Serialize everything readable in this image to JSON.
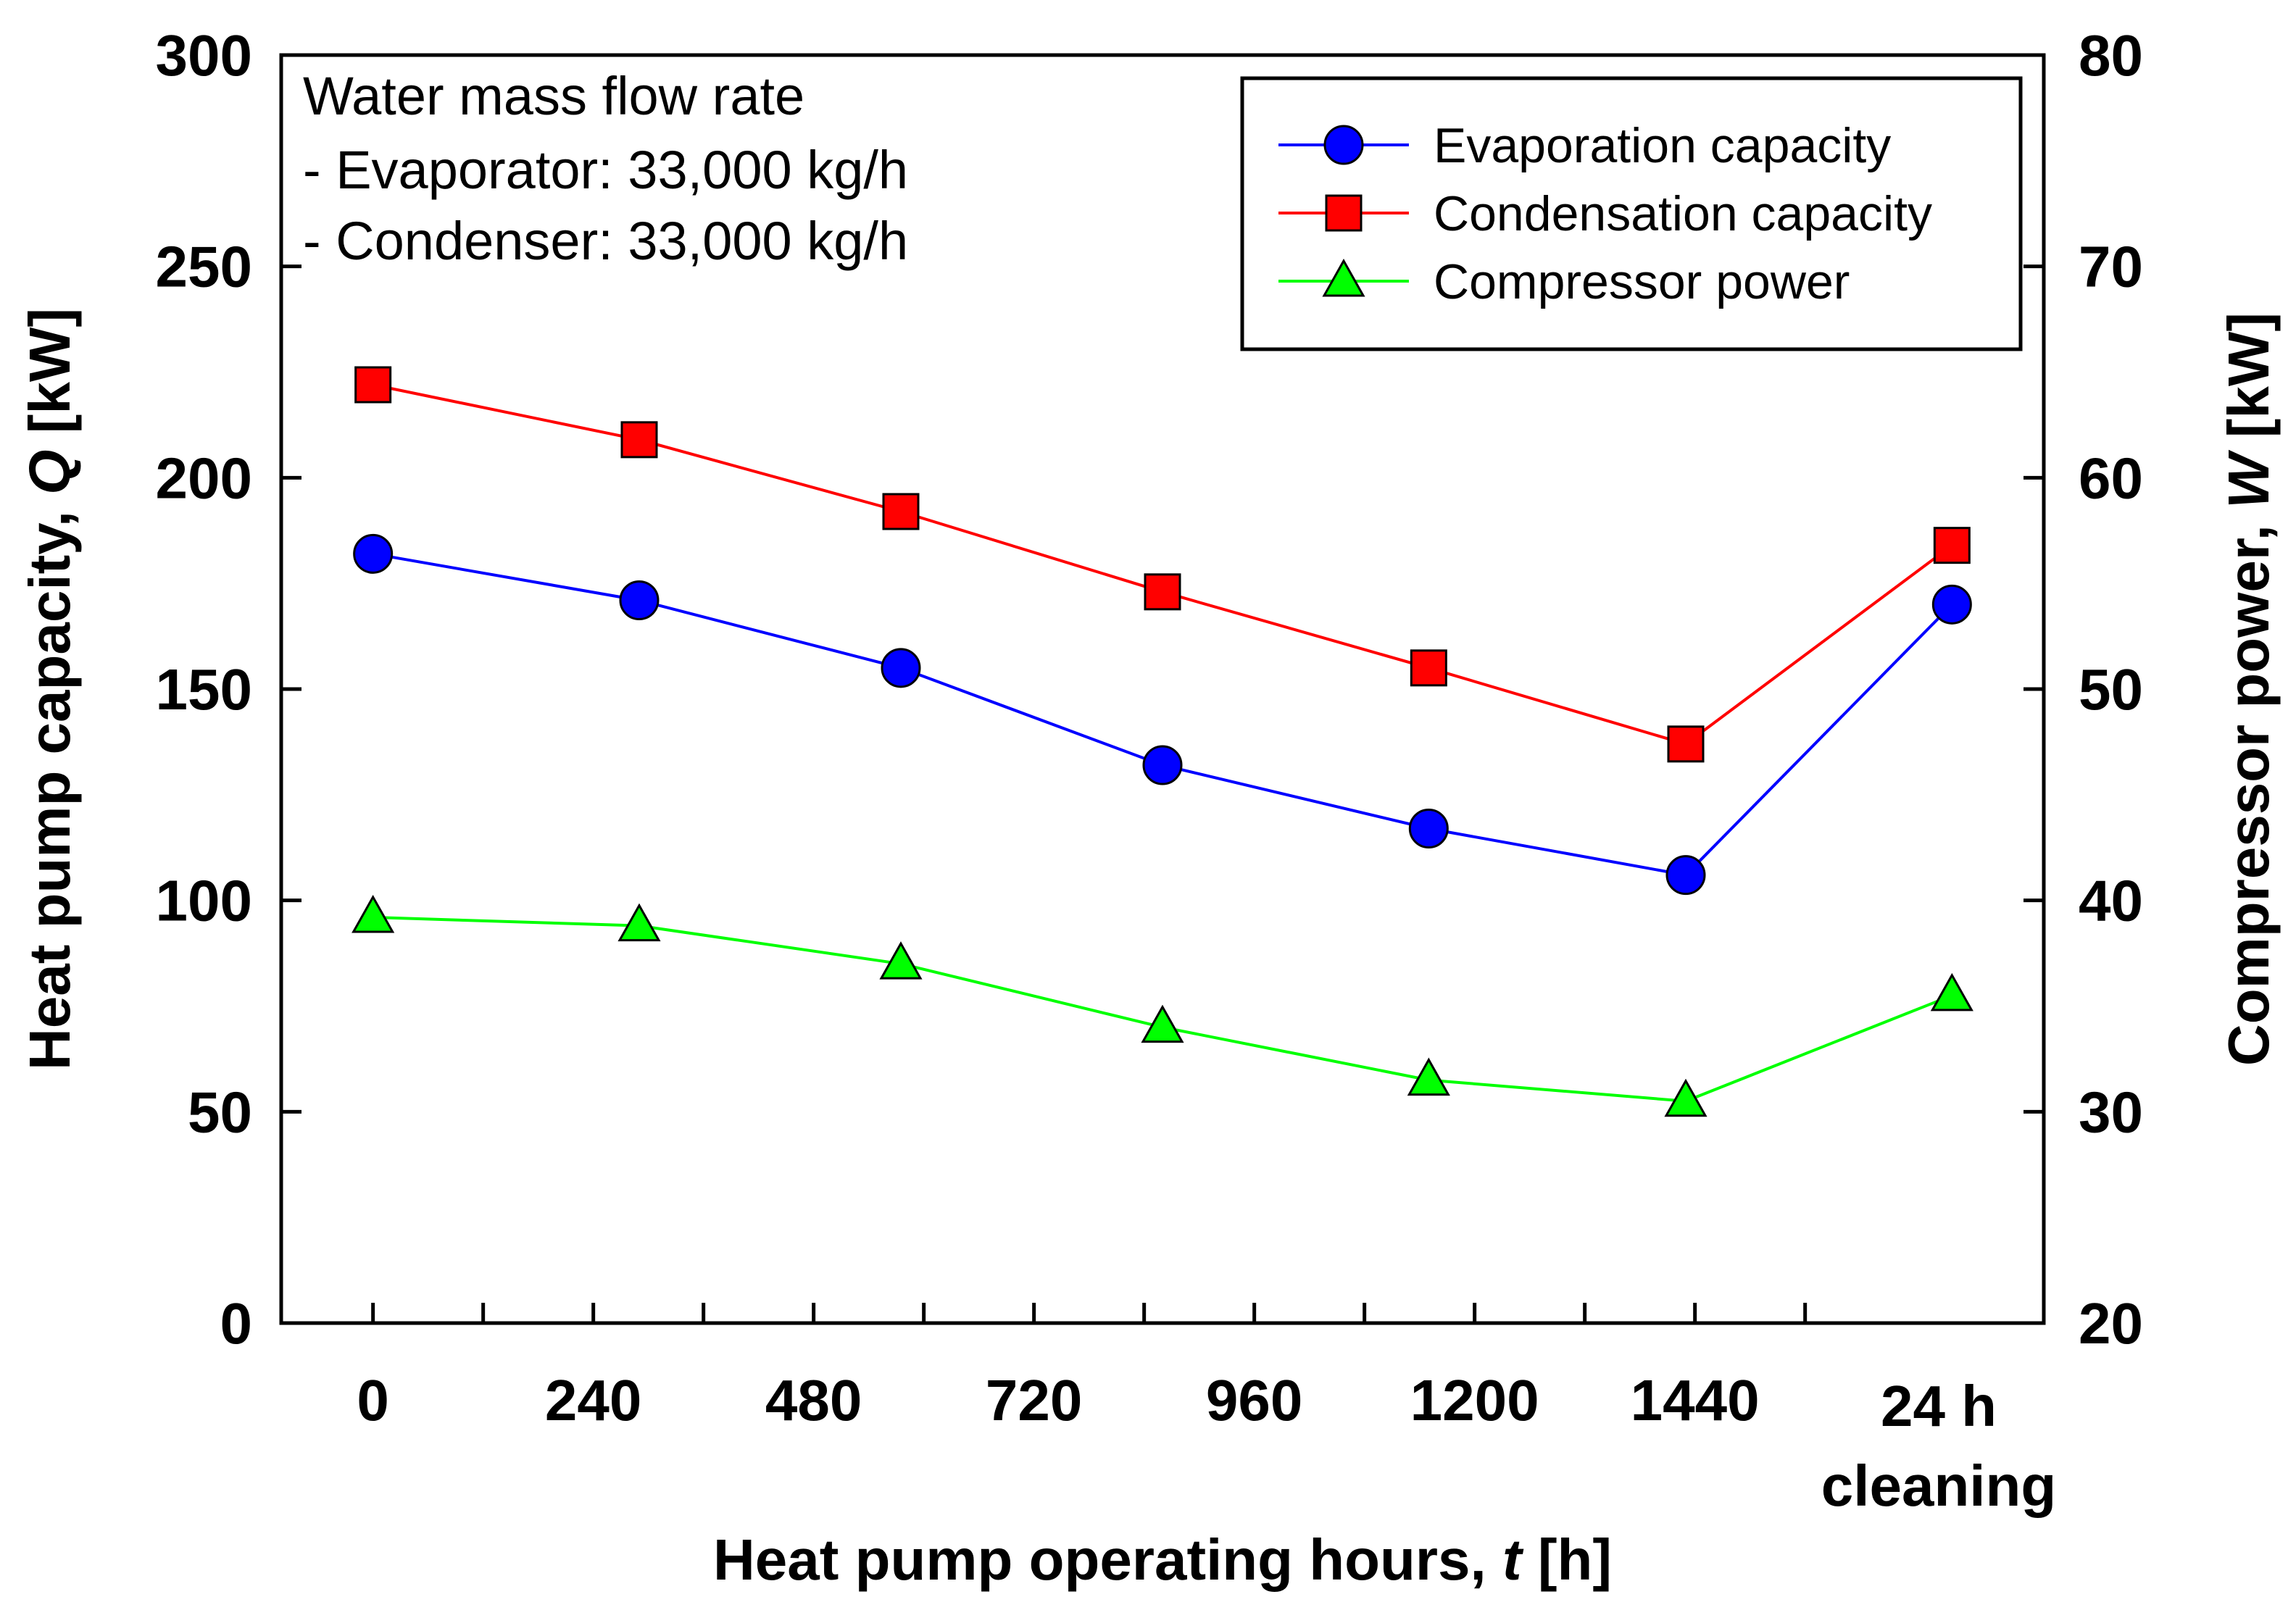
{
  "chart_data": {
    "type": "line",
    "xlabel": "Heat pump operating hours,",
    "xlabel_var": "t",
    "xlabel_unit": "[h]",
    "ylabel": "Heat pump capacity,",
    "ylabel_var": "Q",
    "ylabel_unit": "[kW]",
    "y2label": "Compressor power,",
    "y2label_var": "W",
    "y2label_unit": "[kW]",
    "ylim": [
      0,
      300
    ],
    "y2lim": [
      20,
      80
    ],
    "yticks": [
      0,
      50,
      100,
      150,
      200,
      250,
      300
    ],
    "y2ticks": [
      20,
      30,
      40,
      50,
      60,
      70,
      80
    ],
    "xlim": [
      -100,
      1820
    ],
    "xticks": [
      0,
      240,
      480,
      720,
      960,
      1200,
      1440
    ],
    "xticklabels": [
      "0",
      "240",
      "480",
      "720",
      "960",
      "1200",
      "1440"
    ],
    "cleaning_label": [
      "24 h",
      "cleaning"
    ],
    "x": [
      0,
      290,
      575,
      860,
      1150,
      1430,
      1720
    ],
    "note": [
      "Water mass flow rate",
      "- Evaporator: 33,000 kg/h",
      "- Condenser: 33,000 kg/h"
    ],
    "legend_position": "top-right",
    "series": [
      {
        "name": "Evaporation capacity",
        "axis": "left",
        "marker": "circle",
        "color": "#0000ff",
        "values": [
          182,
          171,
          155,
          132,
          117,
          106,
          170
        ]
      },
      {
        "name": "Condensation capacity",
        "axis": "left",
        "marker": "square",
        "color": "#ff0000",
        "values": [
          222,
          209,
          192,
          173,
          155,
          137,
          184
        ]
      },
      {
        "name": "Compressor power",
        "axis": "right",
        "marker": "triangle",
        "color": "#00ff00",
        "values": [
          39.2,
          38.8,
          37.0,
          34.0,
          31.5,
          30.5,
          35.5
        ]
      }
    ]
  }
}
